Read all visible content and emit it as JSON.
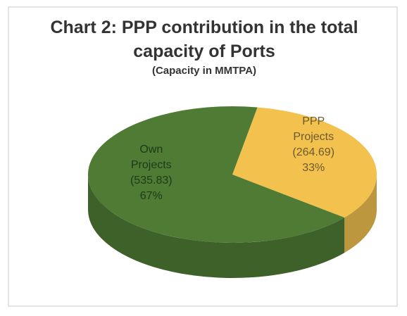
{
  "chart_data": {
    "type": "pie",
    "title": "Chart 2: PPP contribution in the total capacity of Ports",
    "subtitle": "(Capacity in MMTPA)",
    "categories": [
      "PPP Projects",
      "Own Projects"
    ],
    "values": [
      264.69,
      535.83
    ],
    "value_labels": [
      "(264.69)",
      "(535.83)"
    ],
    "percentages": [
      33,
      67
    ],
    "percentage_labels": [
      "33%",
      "67%"
    ],
    "colors": [
      "#f2c14e",
      "#4f7b35"
    ]
  }
}
